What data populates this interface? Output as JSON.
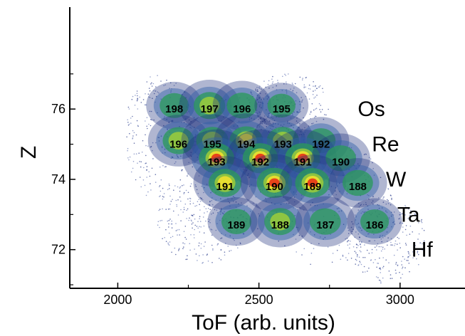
{
  "chart_data": {
    "type": "scatter",
    "title": "",
    "xlabel": "ToF (arb. units)",
    "ylabel": "Z",
    "xlim": [
      1830,
      3230
    ],
    "ylim": [
      70.9,
      78.9
    ],
    "x_ticks": [
      2000,
      2500,
      3000
    ],
    "x_minor_ticks": [
      2250,
      2750
    ],
    "y_ticks": [
      72,
      74,
      76
    ],
    "y_minor_ticks": [
      71,
      73,
      75,
      77
    ],
    "grid": false,
    "colors": {
      "low": "#1c2d7a",
      "mid": "#2a9a5a",
      "high": "#f0e030",
      "peak": "#e83a18"
    },
    "element_labels": [
      {
        "text": "Os",
        "z": 76
      },
      {
        "text": "Re",
        "z": 75
      },
      {
        "text": "W",
        "z": 74
      },
      {
        "text": "Ta",
        "z": 73
      },
      {
        "text": "Hf",
        "z": 72
      }
    ],
    "clusters": [
      {
        "mass": "198",
        "z": 76,
        "tof": 2200,
        "intensity": 0.5
      },
      {
        "mass": "197",
        "z": 76,
        "tof": 2325,
        "intensity": 0.7
      },
      {
        "mass": "196",
        "z": 76,
        "tof": 2440,
        "intensity": 0.6
      },
      {
        "mass": "195",
        "z": 76,
        "tof": 2580,
        "intensity": 0.4
      },
      {
        "mass": "196",
        "z": 75,
        "tof": 2215,
        "intensity": 0.7
      },
      {
        "mass": "195",
        "z": 75,
        "tof": 2335,
        "intensity": 0.75
      },
      {
        "mass": "194",
        "z": 75,
        "tof": 2455,
        "intensity": 0.85
      },
      {
        "mass": "193",
        "z": 75,
        "tof": 2585,
        "intensity": 0.75
      },
      {
        "mass": "192",
        "z": 75,
        "tof": 2720,
        "intensity": 0.5
      },
      {
        "mass": "193",
        "z": 74.5,
        "tof": 2350,
        "intensity": 1.0
      },
      {
        "mass": "192",
        "z": 74.5,
        "tof": 2505,
        "intensity": 1.0
      },
      {
        "mass": "191",
        "z": 74.5,
        "tof": 2655,
        "intensity": 1.0
      },
      {
        "mass": "190",
        "z": 74.5,
        "tof": 2790,
        "intensity": 0.6
      },
      {
        "mass": "191",
        "z": 73.8,
        "tof": 2380,
        "intensity": 0.8
      },
      {
        "mass": "190",
        "z": 73.8,
        "tof": 2555,
        "intensity": 1.0
      },
      {
        "mass": "189",
        "z": 73.8,
        "tof": 2690,
        "intensity": 0.95
      },
      {
        "mass": "188",
        "z": 73.8,
        "tof": 2850,
        "intensity": 0.6
      },
      {
        "mass": "189",
        "z": 72.7,
        "tof": 2420,
        "intensity": 0.55
      },
      {
        "mass": "188",
        "z": 72.7,
        "tof": 2575,
        "intensity": 0.7
      },
      {
        "mass": "187",
        "z": 72.7,
        "tof": 2735,
        "intensity": 0.65
      },
      {
        "mass": "186",
        "z": 72.7,
        "tof": 2910,
        "intensity": 0.45
      }
    ]
  }
}
